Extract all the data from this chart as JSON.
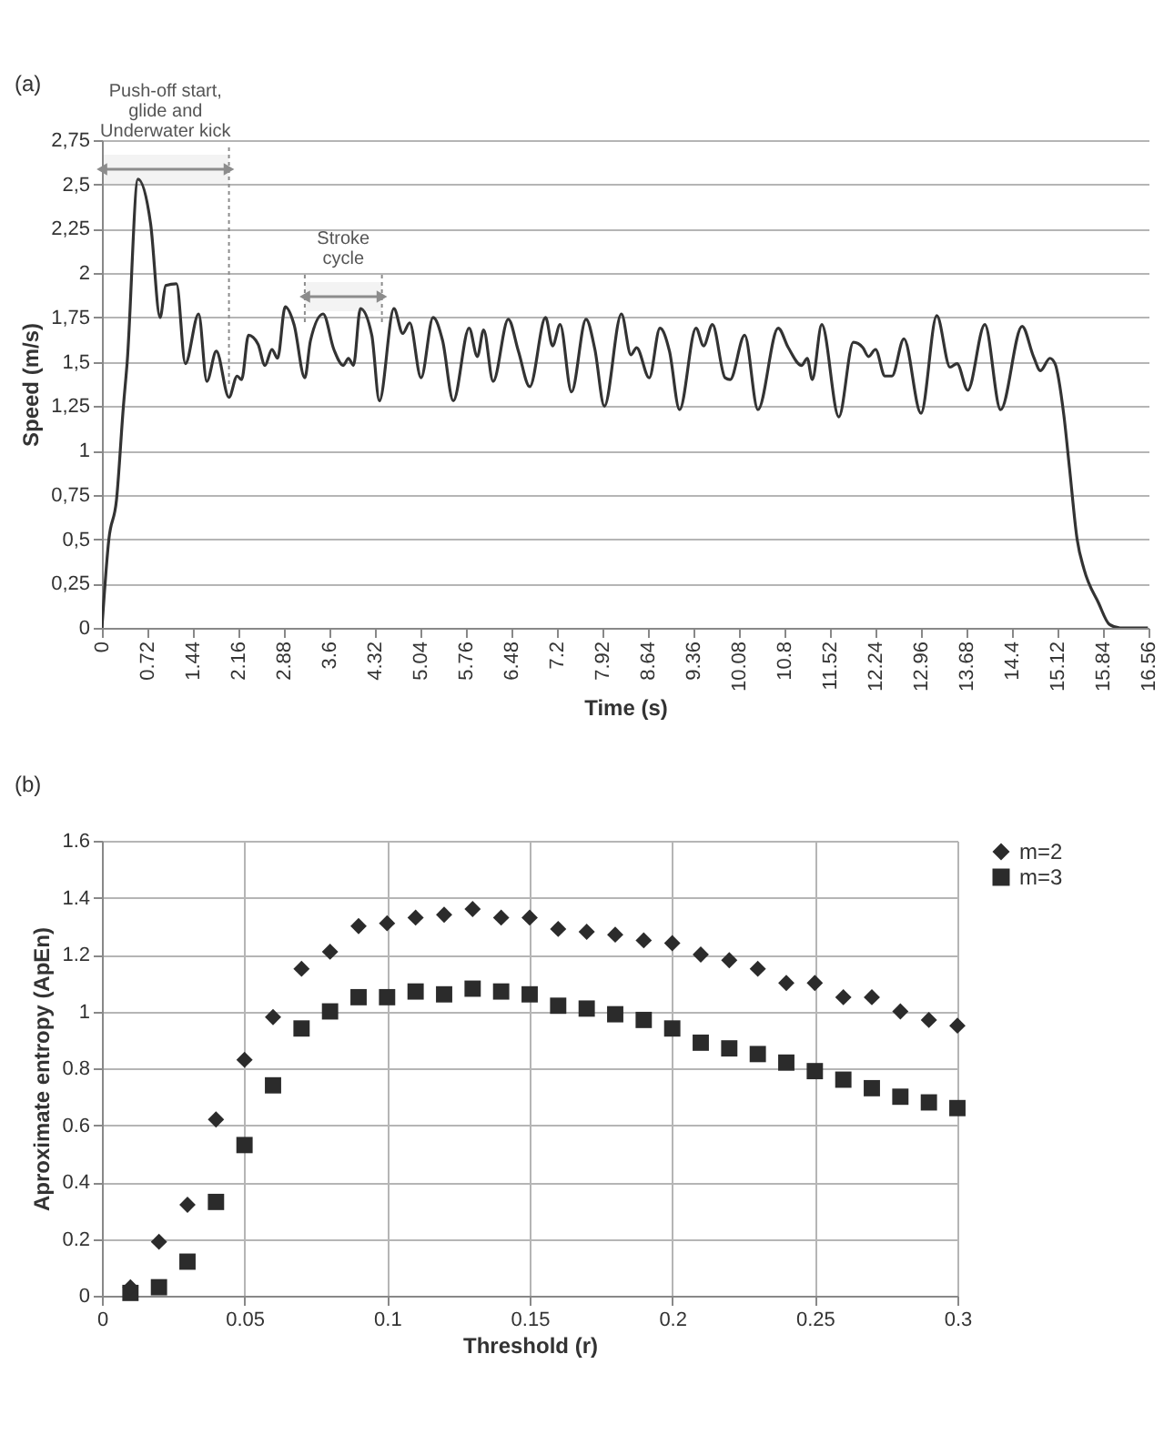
{
  "chart_data": [
    {
      "type": "line",
      "xlabel": "Time (s)",
      "ylabel": "Speed (m/s)",
      "annotations": [
        "(a)"
      ],
      "x": [
        0,
        0.11,
        0.23,
        0.34,
        0.4,
        0.57,
        0.77,
        0.92,
        1.01,
        1.18,
        1.32,
        1.53,
        1.66,
        1.81,
        2.01,
        2.14,
        2.21,
        2.32,
        2.47,
        2.58,
        2.69,
        2.78,
        2.9,
        3.04,
        3.21,
        3.3,
        3.5,
        3.67,
        3.82,
        3.9,
        3.98,
        4.09,
        4.27,
        4.39,
        4.62,
        4.76,
        4.87,
        5.05,
        5.24,
        5.39,
        5.56,
        5.81,
        5.94,
        6.04,
        6.19,
        6.43,
        6.59,
        6.77,
        7.02,
        7.13,
        7.25,
        7.43,
        7.66,
        7.8,
        7.95,
        8.22,
        8.37,
        8.46,
        8.66,
        8.83,
        8.98,
        9.14,
        9.4,
        9.52,
        9.66,
        9.86,
        9.94,
        10.17,
        10.38,
        10.7,
        10.86,
        11.07,
        11.16,
        11.24,
        11.39,
        11.66,
        11.89,
        12.04,
        12.13,
        12.24,
        12.39,
        12.5,
        12.69,
        12.96,
        13.21,
        13.42,
        13.53,
        13.7,
        13.97,
        14.22,
        14.56,
        14.74,
        14.85,
        15,
        15.08,
        15.22,
        15.31,
        15.43,
        15.54,
        15.77,
        15.94,
        16.11,
        16.55
      ],
      "series": [
        {
          "color": "#333333",
          "values": [
            0,
            0.5,
            0.72,
            1.25,
            1.5,
            2.53,
            2.28,
            1.75,
            1.93,
            1.94,
            1.49,
            1.77,
            1.39,
            1.56,
            1.3,
            1.42,
            1.4,
            1.65,
            1.6,
            1.48,
            1.57,
            1.52,
            1.81,
            1.71,
            1.41,
            1.62,
            1.77,
            1.57,
            1.48,
            1.52,
            1.48,
            1.8,
            1.65,
            1.28,
            1.8,
            1.66,
            1.72,
            1.41,
            1.75,
            1.62,
            1.28,
            1.69,
            1.53,
            1.68,
            1.39,
            1.74,
            1.56,
            1.36,
            1.75,
            1.59,
            1.71,
            1.33,
            1.74,
            1.57,
            1.25,
            1.77,
            1.54,
            1.58,
            1.41,
            1.69,
            1.56,
            1.23,
            1.69,
            1.59,
            1.71,
            1.41,
            1.4,
            1.65,
            1.23,
            1.69,
            1.58,
            1.48,
            1.52,
            1.4,
            1.71,
            1.19,
            1.61,
            1.58,
            1.53,
            1.57,
            1.42,
            1.42,
            1.63,
            1.21,
            1.76,
            1.47,
            1.49,
            1.34,
            1.71,
            1.23,
            1.7,
            1.53,
            1.45,
            1.52,
            1.49,
            1.2,
            0.9,
            0.5,
            0.33,
            0.14,
            0.02,
            0,
            0
          ]
        }
      ],
      "xlim": [
        0,
        16.56
      ],
      "xticks": [
        0,
        0.72,
        1.44,
        2.16,
        2.88,
        3.6,
        4.32,
        5.04,
        5.76,
        6.48,
        7.2,
        7.92,
        8.64,
        9.36,
        10.08,
        10.8,
        11.52,
        12.24,
        12.96,
        13.68,
        14.4,
        15.12,
        15.84,
        16.56
      ],
      "ylim": [
        0,
        2.75
      ],
      "yticks": [
        0,
        {
          "value": 0.25,
          "label": "0,25"
        },
        {
          "value": 0.5,
          "label": "0,5"
        },
        {
          "value": 0.75,
          "label": "0,75"
        },
        1,
        {
          "value": 1.25,
          "label": "1,25"
        },
        {
          "value": 1.5,
          "label": "1,5"
        },
        {
          "value": 1.75,
          "label": "1,75"
        },
        2,
        {
          "value": 2.25,
          "label": "2,25"
        },
        {
          "value": 2.5,
          "label": "2,5"
        },
        {
          "value": 2.75,
          "label": "2,75"
        }
      ],
      "grid": "y",
      "bands": [
        {
          "axis": "x",
          "from": 0,
          "to": 2.01,
          "label": "Push-off start, glide and Underwater kick",
          "color": "#8c8c8c"
        },
        {
          "axis": "x",
          "from": 3.21,
          "to": 4.43,
          "label": "Stroke cycle",
          "color": "#8c8c8c"
        }
      ]
    },
    {
      "type": "scatter",
      "xlabel": "Threshold (r)",
      "ylabel": "Aproximate entropy (ApEn)",
      "annotations": [
        "(b)"
      ],
      "x": [
        0.01,
        0.02,
        0.03,
        0.04,
        0.05,
        0.06,
        0.07,
        0.08,
        0.09,
        0.1,
        0.11,
        0.12,
        0.13,
        0.14,
        0.15,
        0.16,
        0.17,
        0.18,
        0.19,
        0.2,
        0.21,
        0.22,
        0.23,
        0.24,
        0.25,
        0.26,
        0.27,
        0.28,
        0.29,
        0.3
      ],
      "series": [
        {
          "name": "m=2",
          "color": "#2b2b2b",
          "marker": "diamond",
          "values": [
            0.03,
            0.19,
            0.32,
            0.62,
            0.83,
            0.98,
            1.15,
            1.21,
            1.3,
            1.31,
            1.33,
            1.34,
            1.36,
            1.33,
            1.33,
            1.29,
            1.28,
            1.27,
            1.25,
            1.24,
            1.2,
            1.18,
            1.15,
            1.1,
            1.1,
            1.05,
            1.05,
            1,
            0.97,
            0.95
          ]
        },
        {
          "name": "m=3",
          "color": "#2b2b2b",
          "marker": "square",
          "values": [
            0.01,
            0.03,
            0.12,
            0.33,
            0.53,
            0.74,
            0.94,
            1,
            1.05,
            1.05,
            1.07,
            1.06,
            1.08,
            1.07,
            1.06,
            1.02,
            1.01,
            0.99,
            0.97,
            0.94,
            0.89,
            0.87,
            0.85,
            0.82,
            0.79,
            0.76,
            0.73,
            0.7,
            0.68,
            0.66
          ]
        }
      ],
      "xlim": [
        0,
        0.3
      ],
      "xticks": [
        0,
        0.05,
        0.1,
        0.15,
        0.2,
        0.25,
        0.3
      ],
      "ylim": [
        0,
        1.6
      ],
      "yticks": [
        0,
        0.2,
        0.4,
        0.6,
        0.8,
        1,
        1.2,
        1.4,
        1.6
      ],
      "grid": true,
      "legend": "right"
    }
  ]
}
